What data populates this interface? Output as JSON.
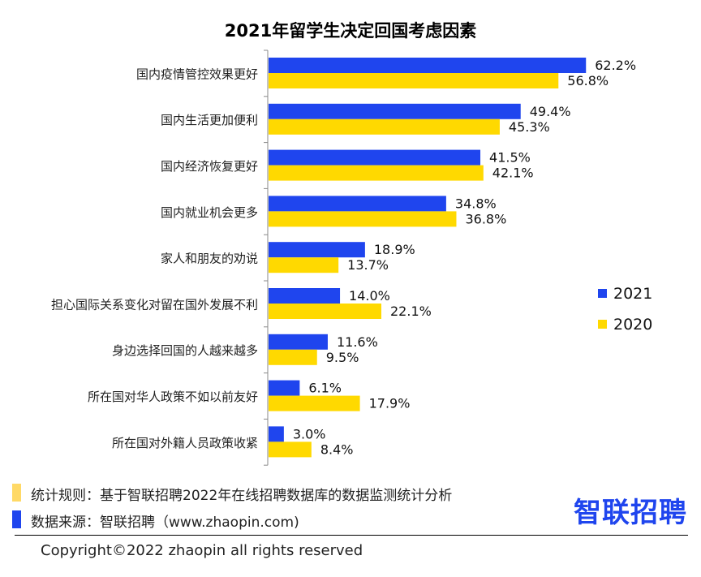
{
  "chart_data": {
    "type": "bar",
    "orientation": "horizontal",
    "title": "2021年留学生决定回国考虑因素",
    "categories": [
      "国内疫情管控效果更好",
      "国内生活更加便利",
      "国内经济恢复更好",
      "国内就业机会更多",
      "家人和朋友的劝说",
      "担心国际关系变化对留在国外发展不利",
      "身边选择回国的人越来越多",
      "所在国对华人政策不如以前友好",
      "所在国对外籍人员政策收紧"
    ],
    "series": [
      {
        "name": "2021",
        "color": "#1f45ee",
        "values": [
          62.2,
          49.4,
          41.5,
          34.8,
          18.9,
          14.0,
          11.6,
          6.1,
          3.0
        ]
      },
      {
        "name": "2020",
        "color": "#ffd900",
        "values": [
          56.8,
          45.3,
          42.1,
          36.8,
          13.7,
          22.1,
          9.5,
          17.9,
          8.4
        ]
      }
    ],
    "value_suffix": "%",
    "legend": "right",
    "grid": false
  },
  "footer": {
    "rule": "统计规则：基于智联招聘2022年在线招聘数据库的数据监测统计分析",
    "source": "数据来源：智联招聘（www.zhaopin.com)",
    "rule_color": "#ffd966",
    "source_color": "#1f45ee",
    "logo": "智联招聘",
    "copyright": "Copyright©2022 zhaopin all rights reserved"
  }
}
